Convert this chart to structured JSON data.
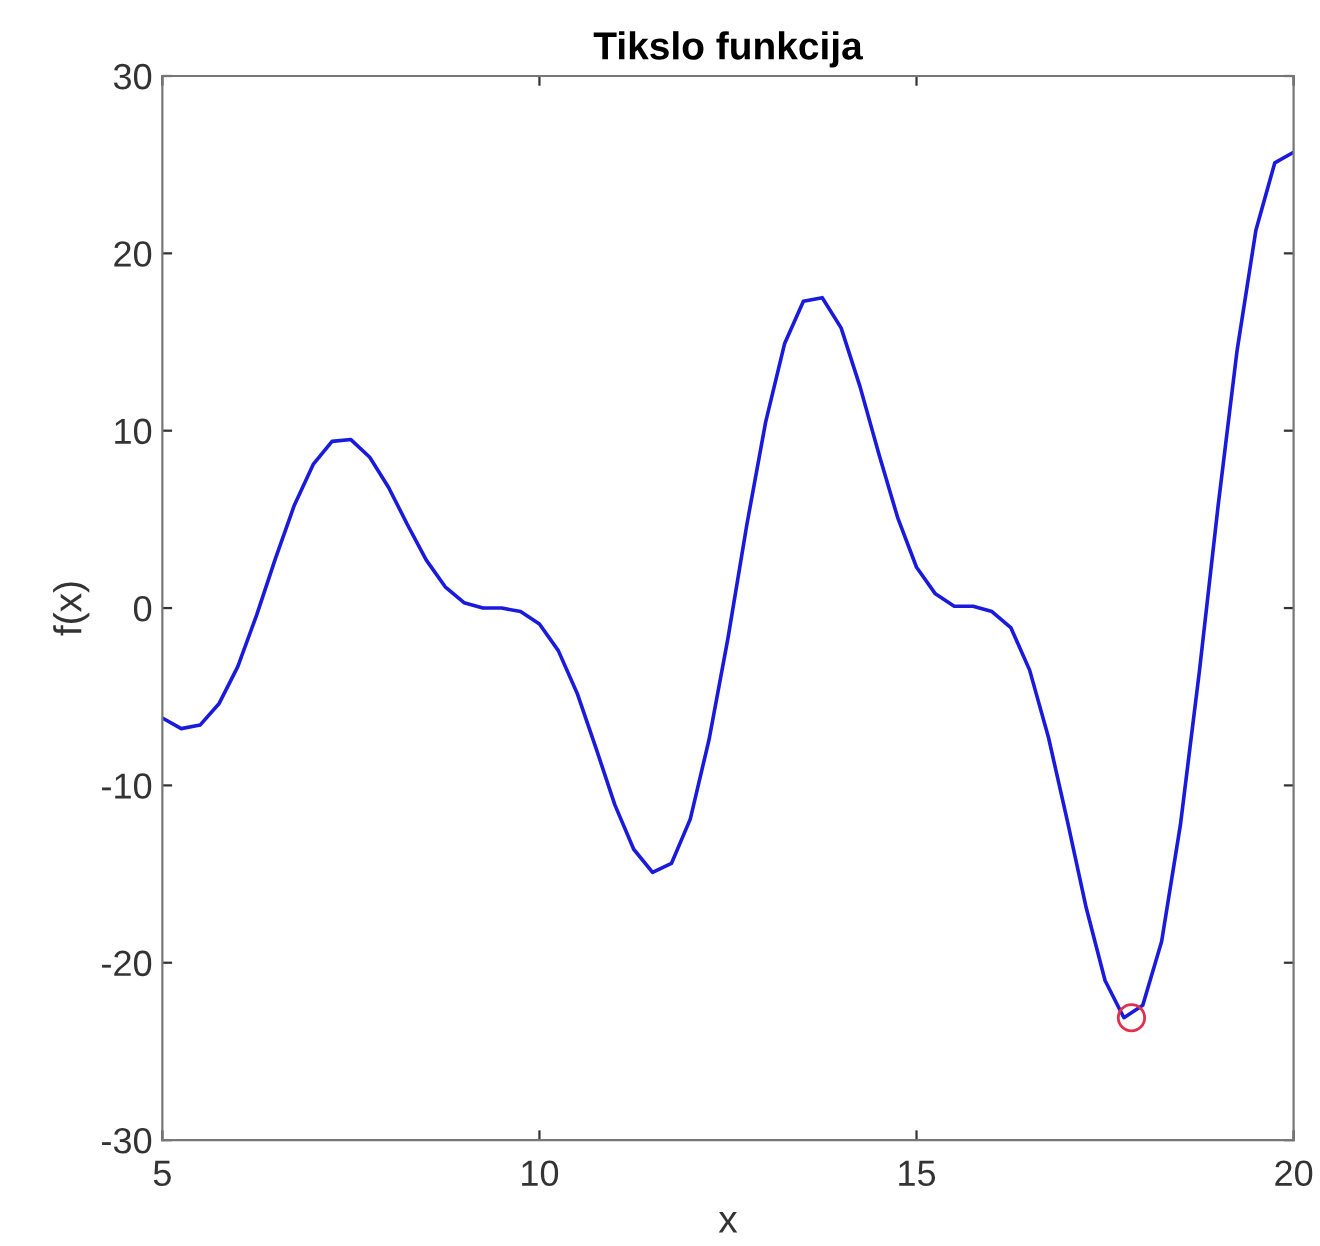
{
  "chart_data": {
    "type": "line",
    "title": "Tikslo funkcija",
    "xlabel": "x",
    "ylabel": "f(x)",
    "xlim": [
      5,
      20
    ],
    "ylim": [
      -30,
      30
    ],
    "xticks": [
      5,
      10,
      15,
      20
    ],
    "yticks": [
      -30,
      -20,
      -10,
      0,
      10,
      20,
      30
    ],
    "grid": false,
    "marker": "none",
    "line_style": "solid",
    "series": [
      {
        "color": "#1a1adc",
        "x": [
          5,
          5.25,
          5.5,
          5.75,
          6,
          6.25,
          6.5,
          6.75,
          7,
          7.25,
          7.5,
          7.75,
          8,
          8.25,
          8.5,
          8.75,
          9,
          9.25,
          9.5,
          9.75,
          10,
          10.25,
          10.5,
          10.75,
          11,
          11.25,
          11.5,
          11.75,
          12,
          12.25,
          12.5,
          12.75,
          13,
          13.25,
          13.5,
          13.75,
          14,
          14.25,
          14.5,
          14.75,
          15,
          15.25,
          15.5,
          15.75,
          16,
          16.25,
          16.5,
          16.75,
          17,
          17.25,
          17.5,
          17.75,
          18,
          18.25,
          18.5,
          18.75,
          19,
          19.25,
          19.5,
          19.75,
          20
        ],
        "values": [
          -6.2,
          -6.8,
          -6.6,
          -5.4,
          -3.3,
          -0.4,
          2.8,
          5.8,
          8.1,
          9.4,
          9.5,
          8.5,
          6.8,
          4.7,
          2.7,
          1.2,
          0.3,
          0.0,
          0.0,
          -0.2,
          -0.9,
          -2.4,
          -4.8,
          -7.9,
          -11.1,
          -13.6,
          -14.9,
          -14.4,
          -11.9,
          -7.4,
          -1.7,
          4.7,
          10.5,
          14.9,
          17.3,
          17.5,
          15.8,
          12.5,
          8.7,
          5.1,
          2.3,
          0.8,
          0.1,
          0.1,
          -0.2,
          -1.1,
          -3.5,
          -7.3,
          -12.0,
          -16.9,
          -21.0,
          -23.1,
          -22.4,
          -18.8,
          -12.2,
          -3.6,
          5.8,
          14.5,
          21.3,
          25.1,
          25.7
        ]
      },
      {
        "type": "scatter",
        "color": "#e0304a",
        "marker": "circle",
        "x": [
          17.85
        ],
        "values": [
          -23.1
        ]
      }
    ]
  }
}
